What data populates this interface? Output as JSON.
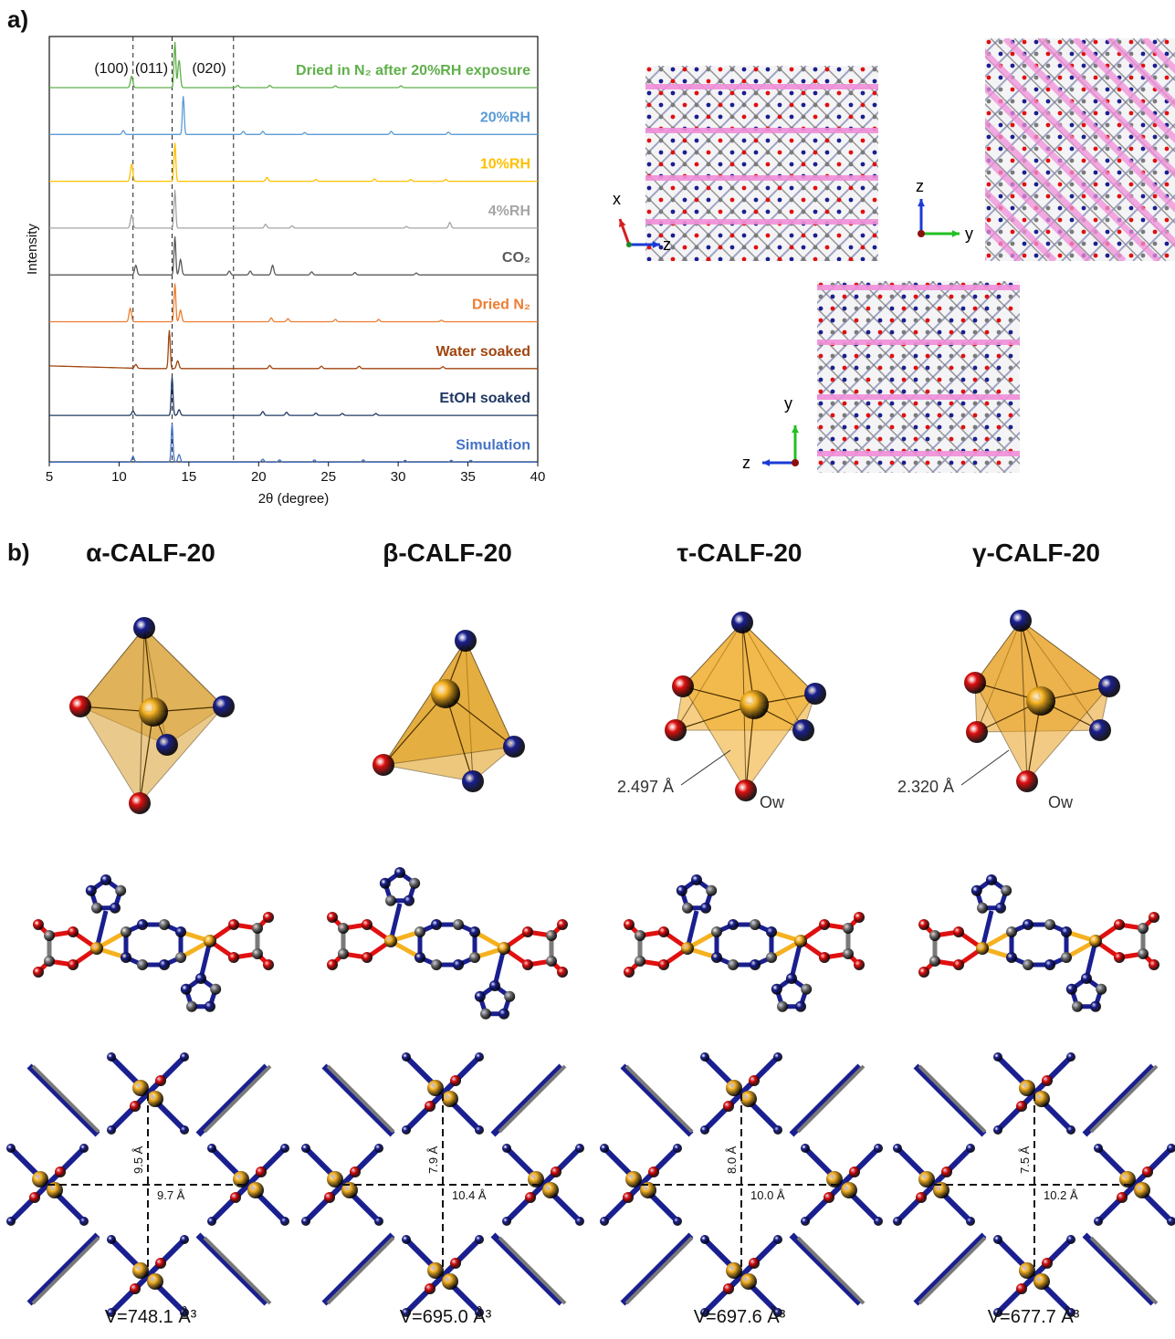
{
  "panel_a": {
    "label": "a)",
    "chart_data": {
      "type": "line",
      "xlabel": "2θ (degree)",
      "ylabel": "Intensity",
      "xlim": [
        5,
        40
      ],
      "x_ticks": [
        "5",
        "10",
        "15",
        "20",
        "25",
        "30",
        "35",
        "40"
      ],
      "peak_annotations": [
        {
          "label": "(100)",
          "x": 10.9
        },
        {
          "label": "(011)",
          "x": 11.2
        },
        {
          "label": "(020)",
          "x": 18.3
        }
      ],
      "dashed_lines_x": [
        11.0,
        13.8,
        18.2
      ],
      "series": [
        {
          "name": "Dried in N₂ after 20%RH exposure",
          "color": "#5fb04a",
          "main_peak": 14.0,
          "peaks": [
            [
              10.9,
              0.25
            ],
            [
              14.0,
              1.0
            ],
            [
              14.3,
              0.6
            ],
            [
              18.5,
              0.05
            ],
            [
              20.8,
              0.05
            ],
            [
              25.5,
              0.04
            ],
            [
              30.2,
              0.04
            ]
          ]
        },
        {
          "name": "20%RH",
          "color": "#5b9bd5",
          "main_peak": 14.6,
          "peaks": [
            [
              10.3,
              0.1
            ],
            [
              14.6,
              1.0
            ],
            [
              18.9,
              0.08
            ],
            [
              20.3,
              0.08
            ],
            [
              23.3,
              0.05
            ],
            [
              29.5,
              0.08
            ],
            [
              33.6,
              0.06
            ]
          ]
        },
        {
          "name": "10%RH",
          "color": "#ffc000",
          "main_peak": 14.0,
          "peaks": [
            [
              10.9,
              0.45
            ],
            [
              14.0,
              1.0
            ],
            [
              20.6,
              0.1
            ],
            [
              24.1,
              0.05
            ],
            [
              28.3,
              0.06
            ],
            [
              30.9,
              0.05
            ],
            [
              33.4,
              0.05
            ]
          ]
        },
        {
          "name": "4%RH",
          "color": "#a5a5a5",
          "main_peak": 14.0,
          "peaks": [
            [
              10.9,
              0.35
            ],
            [
              14.0,
              1.0
            ],
            [
              20.5,
              0.1
            ],
            [
              22.4,
              0.06
            ],
            [
              30.6,
              0.04
            ],
            [
              33.7,
              0.15
            ]
          ]
        },
        {
          "name": "CO₂",
          "color": "#595959",
          "main_peak": 14.0,
          "peaks": [
            [
              11.2,
              0.25
            ],
            [
              14.0,
              1.0
            ],
            [
              14.4,
              0.4
            ],
            [
              17.9,
              0.1
            ],
            [
              19.4,
              0.1
            ],
            [
              21.0,
              0.25
            ],
            [
              23.8,
              0.08
            ],
            [
              26.9,
              0.06
            ],
            [
              31.3,
              0.05
            ]
          ]
        },
        {
          "name": "Dried N₂",
          "color": "#ed7d31",
          "main_peak": 14.0,
          "peaks": [
            [
              10.8,
              0.35
            ],
            [
              14.0,
              1.0
            ],
            [
              14.4,
              0.3
            ],
            [
              20.9,
              0.1
            ],
            [
              22.1,
              0.08
            ],
            [
              25.5,
              0.06
            ],
            [
              28.6,
              0.06
            ],
            [
              33.1,
              0.04
            ]
          ]
        },
        {
          "name": "Water soaked",
          "color": "#a0450e",
          "main_peak": 13.6,
          "peaks": [
            [
              11.2,
              0.1
            ],
            [
              13.6,
              1.0
            ],
            [
              14.2,
              0.2
            ],
            [
              20.8,
              0.08
            ],
            [
              24.5,
              0.06
            ],
            [
              27.2,
              0.06
            ],
            [
              33.2,
              0.05
            ]
          ]
        },
        {
          "name": "EtOH soaked",
          "color": "#1f3864",
          "main_peak": 13.8,
          "peaks": [
            [
              11.0,
              0.12
            ],
            [
              13.8,
              1.0
            ],
            [
              14.3,
              0.15
            ],
            [
              20.3,
              0.1
            ],
            [
              22.0,
              0.08
            ],
            [
              24.1,
              0.06
            ],
            [
              26.0,
              0.05
            ],
            [
              28.4,
              0.05
            ]
          ]
        },
        {
          "name": "Simulation",
          "color": "#4472c4",
          "main_peak": 13.8,
          "peaks": [
            [
              11.0,
              0.15
            ],
            [
              13.8,
              1.0
            ],
            [
              14.3,
              0.2
            ],
            [
              20.3,
              0.08
            ],
            [
              21.5,
              0.06
            ],
            [
              24.0,
              0.06
            ],
            [
              27.5,
              0.06
            ],
            [
              30.5,
              0.05
            ],
            [
              33.8,
              0.05
            ],
            [
              35.2,
              0.05
            ]
          ]
        }
      ]
    },
    "axes_views": {
      "view1": {
        "up": "x",
        "right": "z"
      },
      "view2": {
        "up": "z",
        "right": "y"
      },
      "view3": {
        "up": "y",
        "left": "z"
      }
    }
  },
  "panel_b": {
    "label": "b)",
    "phases": [
      {
        "title": "α-CALF-20",
        "volume": "V=748.1 Å³",
        "dim_v": "9.5 Å",
        "dim_h": "9.7 Å",
        "bond": ""
      },
      {
        "title": "β-CALF-20",
        "volume": "V=695.0 Å³",
        "dim_v": "7.9 Å",
        "dim_h": "10.4 Å",
        "bond": ""
      },
      {
        "title": "τ-CALF-20",
        "volume": "V=697.6 Å³",
        "dim_v": "8.0 Å",
        "dim_h": "10.0 Å",
        "bond": "2.497 Å",
        "ow": "Ow"
      },
      {
        "title": "γ-CALF-20",
        "volume": "V=677.7 Å³",
        "dim_v": "7.5 Å",
        "dim_h": "10.2 Å",
        "bond": "2.320 Å",
        "ow": "Ow"
      }
    ]
  },
  "colors": {
    "zn": "#f5b120",
    "o": "#e01010",
    "n": "#1a1f8f",
    "c": "#7a7a7a",
    "plane": "#f08ed8"
  }
}
